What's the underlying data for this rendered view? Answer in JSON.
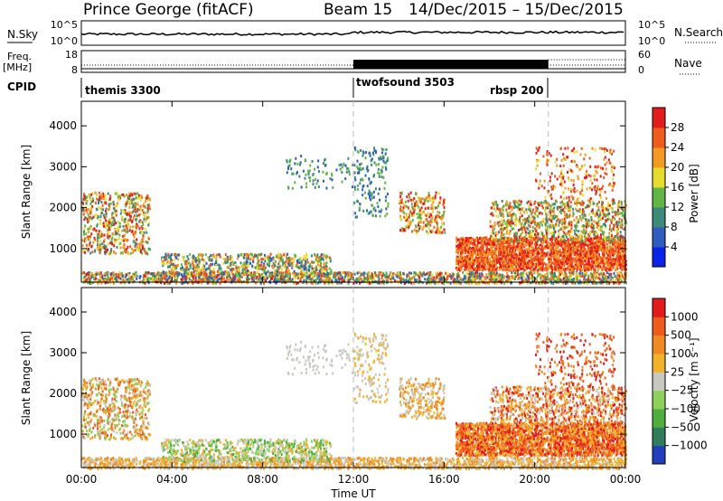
{
  "header": {
    "station": "Prince George (fitACF)",
    "beam": "Beam 15",
    "period": "14/Dec/2015 – 15/Dec/2015"
  },
  "summary_panels": {
    "nsky_label": "N.Sky",
    "nsearch_label": "N.Search",
    "freq_label_line1": "Freq.",
    "freq_label_line2": "[MHz]",
    "nave_label": "Nave",
    "cpid_label": "CPID",
    "noise_left_ticks": [
      "10^5",
      "10^0"
    ],
    "noise_right_ticks": [
      "10^5",
      "10^0"
    ],
    "freq_left_ticks": [
      "18",
      "8"
    ],
    "freq_right_ticks": [
      "60",
      "0"
    ],
    "cpid_modes": [
      {
        "label": "themis 3300",
        "start_hour": 0
      },
      {
        "label": "twofsound 3503",
        "start_hour": 12
      },
      {
        "label": "rbsp 200",
        "start_hour": 20.6
      }
    ]
  },
  "chart_data": [
    {
      "type": "heatmap",
      "name": "power",
      "ylabel": "Slant Range [km]",
      "xlabel": "",
      "xlim_hours": [
        0,
        24
      ],
      "ylim": [
        180,
        4600
      ],
      "yticks": [
        "1000",
        "2000",
        "3000",
        "4000"
      ],
      "yticks_values": [
        1000,
        2000,
        3000,
        4000
      ],
      "colorbar_label": "Power [dB]",
      "colorbar_ticks": [
        "4",
        "8",
        "12",
        "16",
        "20",
        "24",
        "28"
      ],
      "colorbar_colors": [
        "#0b22e8",
        "#2f5cbf",
        "#3b8a7a",
        "#62b646",
        "#e6dc2c",
        "#f39a22",
        "#ef5a1f",
        "#e21b1b"
      ],
      "mode_boundaries_hours": [
        12,
        20.6
      ]
    },
    {
      "type": "heatmap",
      "name": "velocity",
      "ylabel": "Slant Range [km]",
      "xlabel": "Time UT",
      "xlim_hours": [
        0,
        24
      ],
      "ylim": [
        180,
        4600
      ],
      "yticks": [
        "1000",
        "2000",
        "3000",
        "4000"
      ],
      "yticks_values": [
        1000,
        2000,
        3000,
        4000
      ],
      "xticks": [
        "00:00",
        "04:00",
        "08:00",
        "12:00",
        "16:00",
        "20:00",
        "00:00"
      ],
      "xticks_hours": [
        0,
        4,
        8,
        12,
        16,
        20,
        24
      ],
      "colorbar_label": "Velocity [m s⁻¹]",
      "colorbar_ticks": [
        "1000",
        "500",
        "100",
        "25",
        "−25",
        "−100",
        "−500",
        "−1000"
      ],
      "colorbar_colors": [
        "#1f3fbf",
        "#2f7d5a",
        "#4fae3e",
        "#8fd05a",
        "#c8c8c0",
        "#f2b22a",
        "#f08a22",
        "#ef5a1f",
        "#e21b1b"
      ],
      "mode_boundaries_hours": [
        12,
        20.6
      ]
    }
  ]
}
